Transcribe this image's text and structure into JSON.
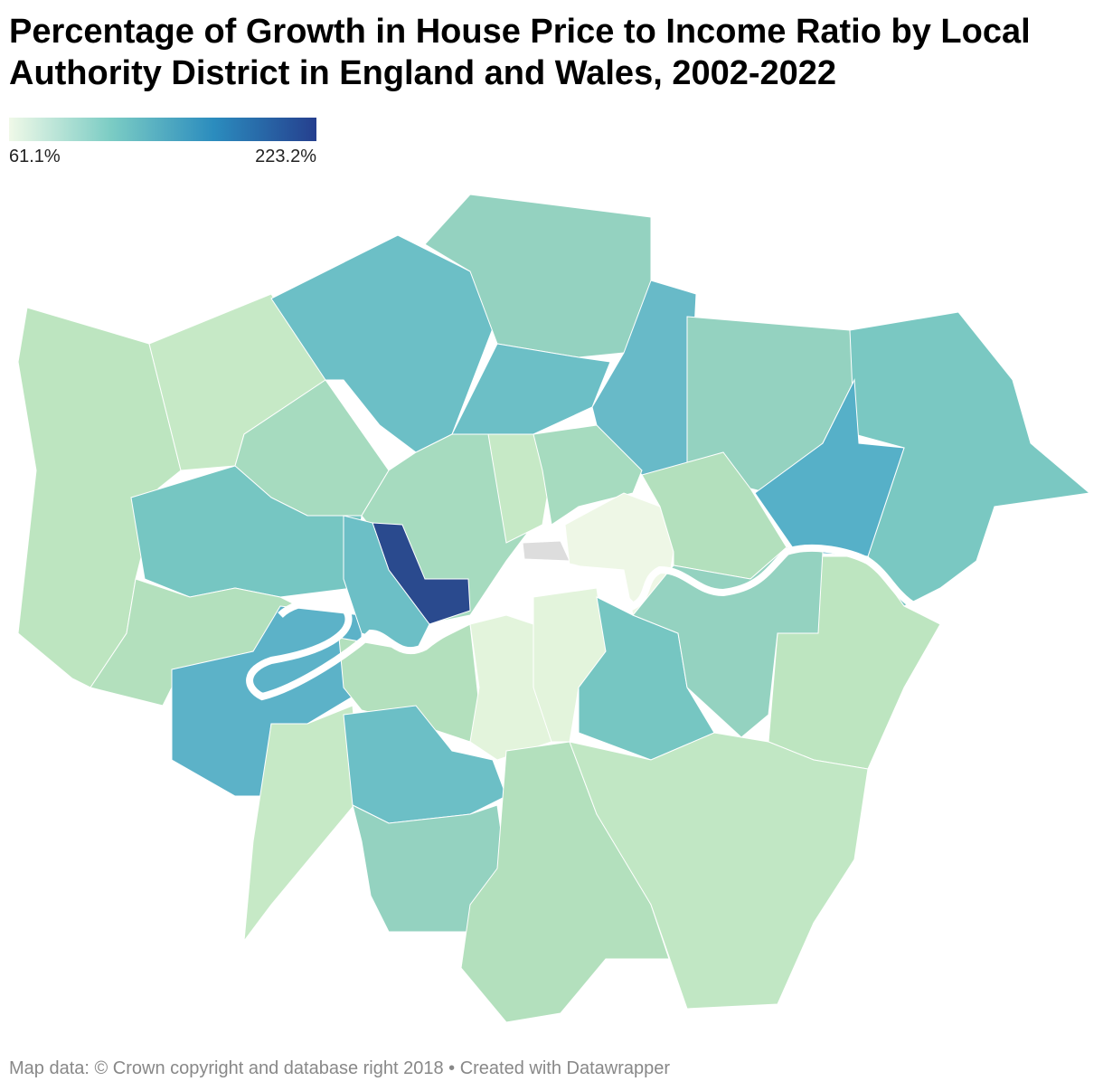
{
  "header": {
    "title": "Percentage of Growth in House Price to Income Ratio by Local Authority District in England and Wales, 2002-2022"
  },
  "legend": {
    "min": {
      "value": 61.1,
      "label": "61.1%"
    },
    "max": {
      "value": 223.2,
      "label": "223.2%"
    }
  },
  "footer": "Map data: © Crown copyright and database right 2018 • Created with Datawrapper"
}
